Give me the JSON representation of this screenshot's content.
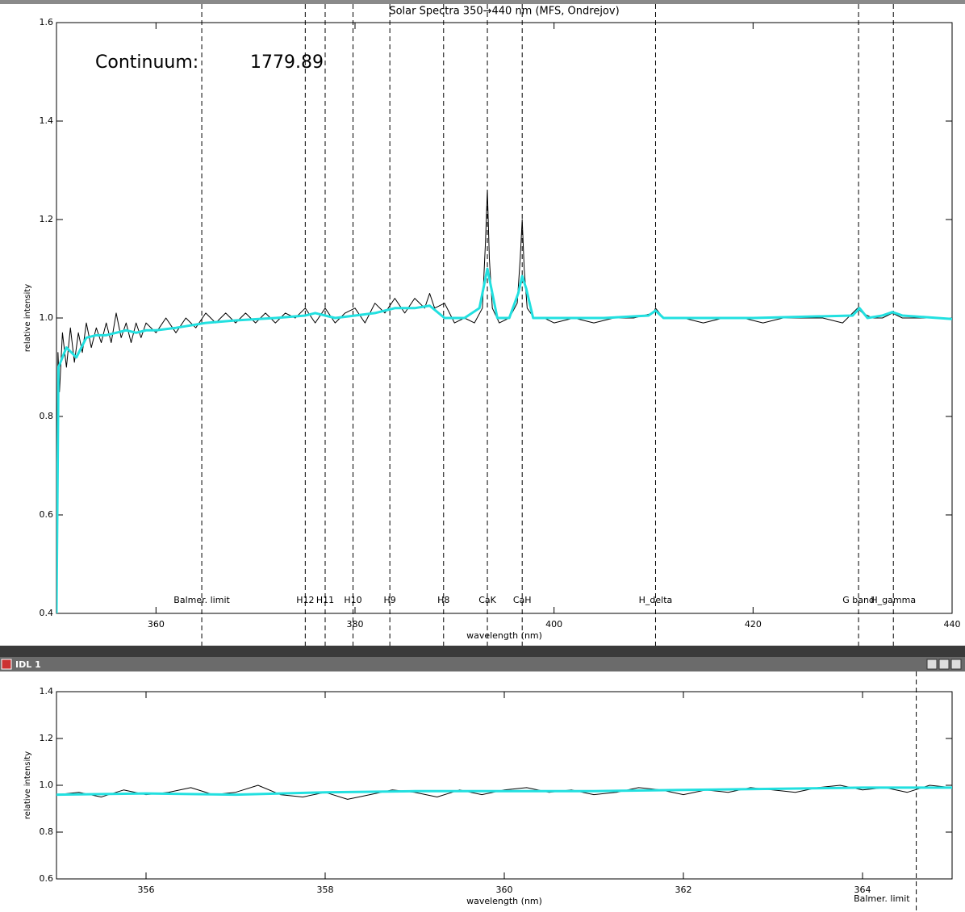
{
  "window": {
    "title": "IDL 1"
  },
  "chart_data": [
    {
      "type": "line",
      "title": "Solar Spectra 350→440 nm (MFS, Ondrejov)",
      "x_label": "wavelength (nm)",
      "y_label": "relative intensity",
      "xlim": [
        350,
        440
      ],
      "ylim": [
        0.4,
        1.6
      ],
      "xticks": [
        360,
        380,
        400,
        420,
        440
      ],
      "yticks": [
        0.4,
        0.6,
        0.8,
        {
          "value": 1,
          "label": "1.0"
        },
        1.2,
        1.4,
        1.6
      ],
      "annotations": [
        {
          "text": "Continuum:"
        },
        {
          "text": "1779.89"
        }
      ],
      "reference_lines": [
        {
          "x": 364.6,
          "label": "Balmer. limit"
        },
        {
          "x": 375.0,
          "label": "H12"
        },
        {
          "x": 377.0,
          "label": "H11"
        },
        {
          "x": 379.8,
          "label": "H10"
        },
        {
          "x": 383.5,
          "label": "H9"
        },
        {
          "x": 388.9,
          "label": "H8"
        },
        {
          "x": 393.3,
          "label": "CaK"
        },
        {
          "x": 396.8,
          "label": "CaH"
        },
        {
          "x": 410.2,
          "label": "H_delta"
        },
        {
          "x": 430.6,
          "label": "G band"
        },
        {
          "x": 434.1,
          "label": "H_gamma"
        }
      ],
      "series": [
        {
          "color": "#000000",
          "width": 1,
          "x": [
            350,
            350.15,
            350.3,
            350.6,
            351,
            351.4,
            351.8,
            352.2,
            352.6,
            353,
            353.5,
            354,
            354.5,
            355,
            355.5,
            356,
            356.5,
            357,
            357.5,
            358,
            358.5,
            359,
            360,
            361,
            362,
            363,
            364,
            365,
            366,
            367,
            368,
            369,
            370,
            371,
            372,
            373,
            374,
            375,
            376,
            377,
            378,
            379,
            380,
            381,
            382,
            383,
            384,
            385,
            386,
            387,
            387.5,
            388,
            389,
            390,
            391,
            392,
            392.8,
            393.1,
            393.3,
            393.5,
            393.8,
            394.5,
            395.5,
            396.3,
            396.6,
            396.8,
            397,
            397.3,
            398,
            399,
            400,
            402,
            404,
            406,
            408,
            410,
            410.2,
            411,
            413,
            415,
            417,
            419,
            421,
            423,
            425,
            427,
            429,
            430.5,
            431,
            432,
            433,
            434,
            435,
            436,
            438,
            440
          ],
          "values": [
            0.4,
            0.93,
            0.85,
            0.97,
            0.9,
            0.98,
            0.91,
            0.97,
            0.93,
            0.99,
            0.94,
            0.98,
            0.95,
            0.99,
            0.95,
            1.01,
            0.96,
            0.99,
            0.95,
            0.99,
            0.96,
            0.99,
            0.97,
            1.0,
            0.97,
            1.0,
            0.98,
            1.01,
            0.99,
            1.01,
            0.99,
            1.01,
            0.99,
            1.01,
            0.99,
            1.01,
            1.0,
            1.02,
            0.99,
            1.02,
            0.99,
            1.01,
            1.02,
            0.99,
            1.03,
            1.01,
            1.04,
            1.01,
            1.04,
            1.02,
            1.05,
            1.02,
            1.03,
            0.99,
            1.0,
            0.99,
            1.02,
            1.15,
            1.26,
            1.12,
            1.02,
            0.99,
            1.0,
            1.03,
            1.12,
            1.2,
            1.1,
            1.02,
            1.0,
            1.0,
            0.99,
            1.0,
            0.99,
            1.0,
            1.0,
            1.01,
            1.02,
            1.0,
            1.0,
            0.99,
            1.0,
            1.0,
            0.99,
            1.0,
            1.0,
            1.0,
            0.99,
            1.02,
            1.01,
            1.0,
            1.0,
            1.01,
            1.0,
            1.0,
            1.0,
            1.0
          ]
        },
        {
          "color": "#22e0e0",
          "width": 3,
          "x": [
            350,
            350.2,
            350.6,
            351,
            351.5,
            352,
            353,
            354,
            355,
            356,
            357,
            358,
            359,
            360,
            362,
            365,
            368,
            372,
            375,
            376,
            378,
            380,
            382,
            384,
            386,
            387.5,
            389,
            391,
            392.5,
            393,
            393.3,
            393.7,
            394.3,
            395.5,
            396.4,
            396.8,
            397.2,
            397.9,
            400,
            405,
            409.5,
            410.2,
            411,
            420,
            430,
            430.7,
            431.5,
            433,
            434,
            435,
            440
          ],
          "values": [
            0.4,
            0.9,
            0.92,
            0.94,
            0.93,
            0.92,
            0.96,
            0.965,
            0.965,
            0.97,
            0.975,
            0.97,
            0.975,
            0.975,
            0.98,
            0.99,
            0.995,
            1.0,
            1.005,
            1.01,
            1.0,
            1.005,
            1.01,
            1.02,
            1.02,
            1.025,
            1.0,
            1.0,
            1.02,
            1.07,
            1.1,
            1.06,
            1.0,
            1.0,
            1.05,
            1.085,
            1.06,
            1.0,
            1.0,
            1.0,
            1.005,
            1.015,
            1.0,
            1.0,
            1.005,
            1.02,
            1.0,
            1.005,
            1.012,
            1.005,
            0.998
          ]
        }
      ]
    },
    {
      "type": "line",
      "x_label": "wavelength (nm)",
      "y_label": "relative intensity",
      "xlim": [
        355,
        365
      ],
      "ylim": [
        0.6,
        1.4
      ],
      "xticks": [
        356,
        358,
        360,
        362,
        364
      ],
      "yticks": [
        0.6,
        0.8,
        {
          "value": 1,
          "label": "1.0"
        },
        1.2,
        1.4
      ],
      "reference_lines": [
        {
          "x": 364.6,
          "label": "Balmer. limit"
        }
      ],
      "series": [
        {
          "color": "#000000",
          "width": 1,
          "x": [
            355,
            355.25,
            355.5,
            355.75,
            356,
            356.25,
            356.5,
            356.75,
            357,
            357.25,
            357.5,
            357.75,
            358,
            358.25,
            358.5,
            358.75,
            359,
            359.25,
            359.5,
            359.75,
            360,
            360.25,
            360.5,
            360.75,
            361,
            361.25,
            361.5,
            361.75,
            362,
            362.25,
            362.5,
            362.75,
            363,
            363.25,
            363.5,
            363.75,
            364,
            364.25,
            364.5,
            364.75,
            365
          ],
          "values": [
            0.96,
            0.97,
            0.95,
            0.98,
            0.96,
            0.97,
            0.99,
            0.96,
            0.97,
            1.0,
            0.96,
            0.95,
            0.97,
            0.94,
            0.96,
            0.98,
            0.97,
            0.95,
            0.98,
            0.96,
            0.98,
            0.99,
            0.97,
            0.98,
            0.96,
            0.97,
            0.99,
            0.98,
            0.96,
            0.98,
            0.97,
            0.99,
            0.98,
            0.97,
            0.99,
            1.0,
            0.98,
            0.99,
            0.97,
            1.0,
            0.99
          ]
        },
        {
          "color": "#22e0e0",
          "width": 3,
          "x": [
            355,
            356,
            357,
            358,
            359,
            360,
            361,
            362,
            363,
            364,
            365
          ],
          "values": [
            0.96,
            0.965,
            0.96,
            0.97,
            0.975,
            0.975,
            0.975,
            0.98,
            0.985,
            0.99,
            0.99
          ]
        }
      ]
    }
  ]
}
